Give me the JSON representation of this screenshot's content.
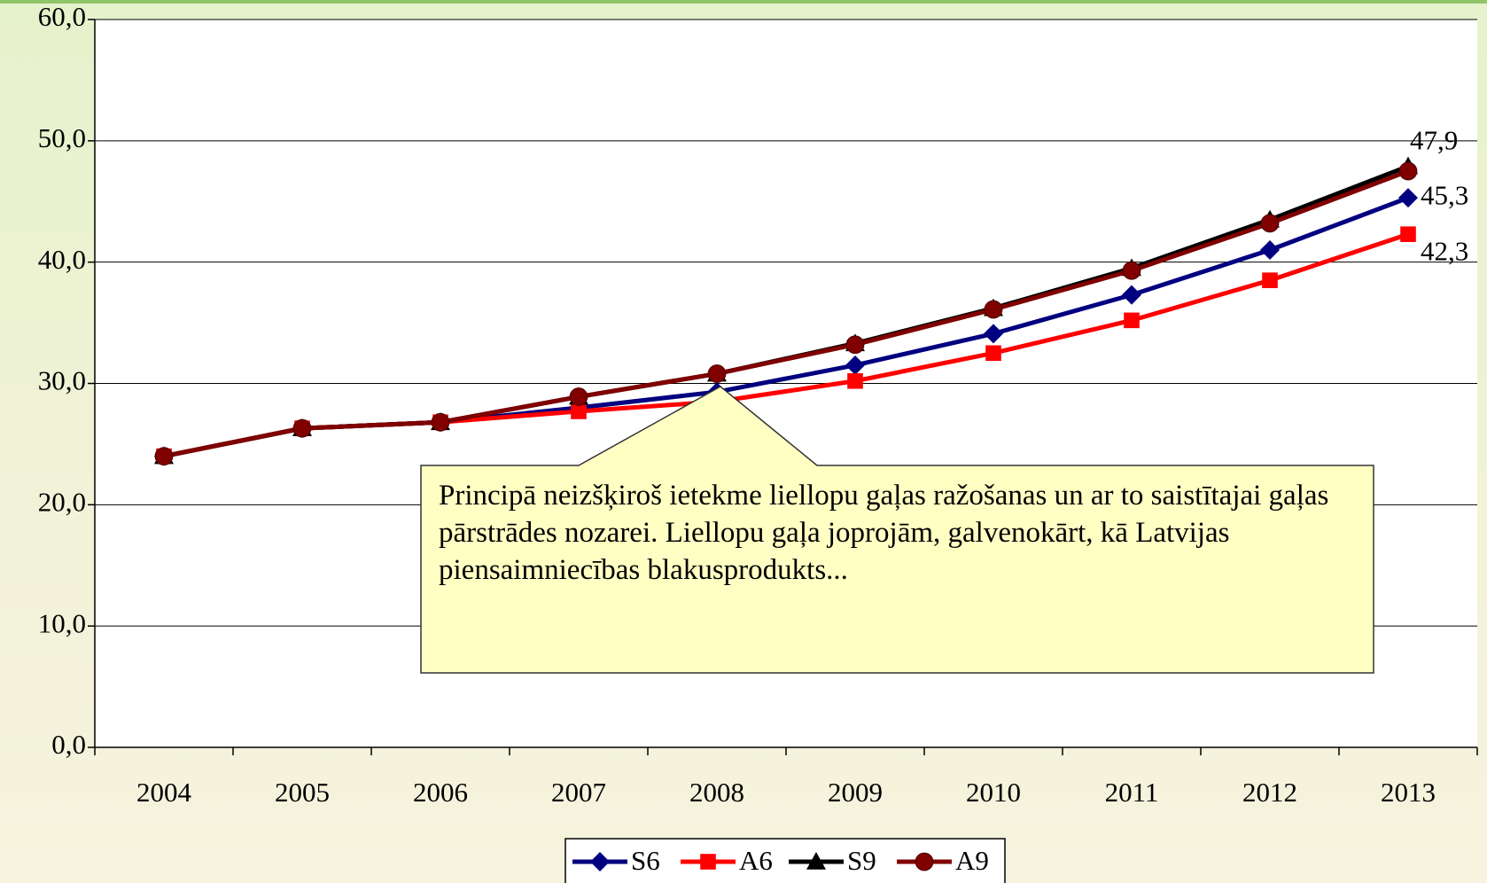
{
  "chart_data": {
    "type": "line",
    "categories": [
      "2004",
      "2005",
      "2006",
      "2007",
      "2008",
      "2009",
      "2010",
      "2011",
      "2012",
      "2013"
    ],
    "series": [
      {
        "name": "S6",
        "color": "#000080",
        "marker": "diamond",
        "values": [
          24.0,
          26.3,
          26.8,
          28.0,
          29.3,
          31.5,
          34.1,
          37.3,
          41.0,
          45.3
        ],
        "value_labels": [
          null,
          null,
          null,
          null,
          null,
          null,
          null,
          null,
          null,
          "45,3"
        ]
      },
      {
        "name": "A6",
        "color": "#ff0000",
        "marker": "square",
        "values": [
          24.0,
          26.3,
          26.8,
          27.7,
          28.5,
          30.2,
          32.5,
          35.2,
          38.5,
          42.3
        ],
        "value_labels": [
          null,
          null,
          null,
          null,
          null,
          null,
          null,
          null,
          null,
          "42,3"
        ]
      },
      {
        "name": "S9",
        "color": "#000000",
        "marker": "triangle",
        "values": [
          24.0,
          26.3,
          26.8,
          28.9,
          30.8,
          33.3,
          36.2,
          39.5,
          43.5,
          47.9
        ],
        "value_labels": [
          null,
          null,
          null,
          null,
          null,
          null,
          null,
          null,
          null,
          "47,9"
        ]
      },
      {
        "name": "A9",
        "color": "#800000",
        "marker": "circle",
        "values": [
          24.0,
          26.3,
          26.8,
          28.9,
          30.8,
          33.2,
          36.1,
          39.3,
          43.2,
          47.5
        ]
      }
    ],
    "ylim": [
      0,
      60
    ],
    "yticks": [
      {
        "value": 0,
        "label": "0,0"
      },
      {
        "value": 10,
        "label": "10,0"
      },
      {
        "value": 20,
        "label": "20,0"
      },
      {
        "value": 30,
        "label": "30,0"
      },
      {
        "value": 40,
        "label": "40,0"
      },
      {
        "value": 50,
        "label": "50,0"
      },
      {
        "value": 60,
        "label": "60,0"
      }
    ],
    "grid": true,
    "legend": "bottom",
    "annotation": "Principā neizšķiroš ietekme liellopu gaļas ražošanas un ar to saistītajai gaļas pārstrādes nozarei. Liellopu gaļa joprojām, galvenokārt, kā Latvijas piensaimniecības blakusprodukts..."
  }
}
